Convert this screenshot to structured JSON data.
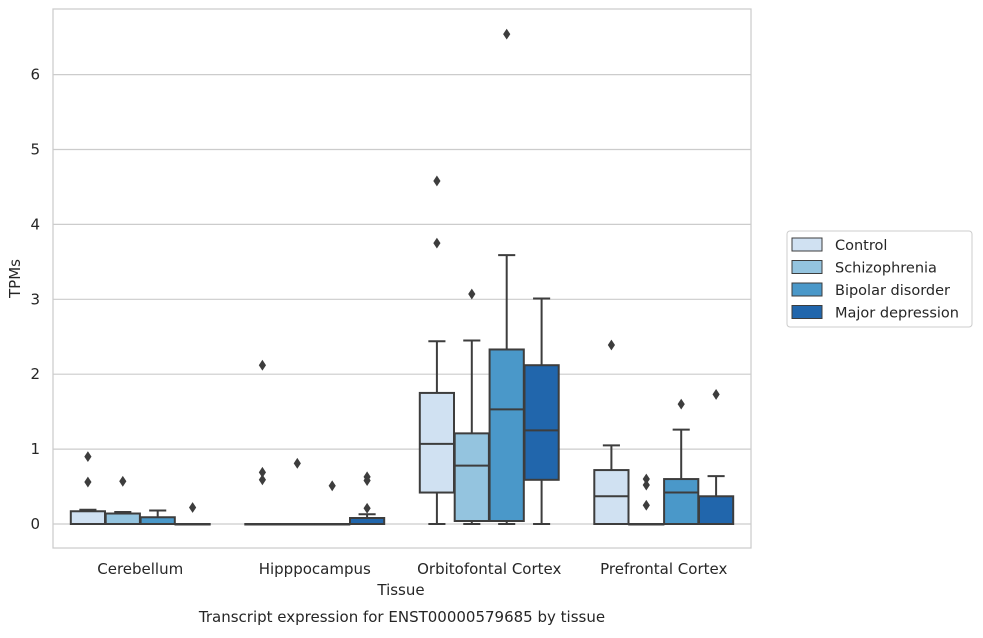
{
  "chart_data": {
    "type": "box",
    "title": "",
    "caption": "Transcript expression for ENST00000579685 by tissue",
    "xlabel": "Tissue",
    "ylabel": "TPMs",
    "ylim": [
      -0.32,
      6.9
    ],
    "yticks": [
      0,
      1,
      2,
      3,
      4,
      5,
      6
    ],
    "grid": "horizontal",
    "legend_position": "right",
    "categories": [
      "Cerebellum",
      "Hipppocampus",
      "Orbitofontal Cortex",
      "Prefrontal Cortex"
    ],
    "series": [
      {
        "name": "Control",
        "color": "#d0e1f2",
        "boxes": [
          {
            "q1": 0.0,
            "median": 0.0,
            "q3": 0.17,
            "whislo": 0.0,
            "whishi": 0.19,
            "fliers": [
              0.9,
              0.56
            ]
          },
          {
            "q1": 0.0,
            "median": 0.0,
            "q3": 0.0,
            "whislo": 0.0,
            "whishi": 0.0,
            "fliers": [
              2.12,
              0.69,
              0.59
            ]
          },
          {
            "q1": 0.42,
            "median": 1.07,
            "q3": 1.75,
            "whislo": 0.0,
            "whishi": 2.44,
            "fliers": [
              4.58,
              3.75
            ]
          },
          {
            "q1": 0.0,
            "median": 0.37,
            "q3": 0.72,
            "whislo": 0.0,
            "whishi": 1.05,
            "fliers": [
              2.39
            ]
          }
        ]
      },
      {
        "name": "Schizophrenia",
        "color": "#94c4df",
        "boxes": [
          {
            "q1": 0.0,
            "median": 0.0,
            "q3": 0.14,
            "whislo": 0.0,
            "whishi": 0.16,
            "fliers": [
              0.57
            ]
          },
          {
            "q1": 0.0,
            "median": 0.0,
            "q3": 0.0,
            "whislo": 0.0,
            "whishi": 0.0,
            "fliers": [
              0.81
            ]
          },
          {
            "q1": 0.04,
            "median": 0.78,
            "q3": 1.21,
            "whislo": 0.0,
            "whishi": 2.45,
            "fliers": [
              3.07
            ]
          },
          {
            "q1": 0.0,
            "median": 0.0,
            "q3": 0.0,
            "whislo": 0.0,
            "whishi": 0.0,
            "fliers": [
              0.6,
              0.52,
              0.25
            ]
          }
        ]
      },
      {
        "name": "Bipolar disorder",
        "color": "#4a98c9",
        "boxes": [
          {
            "q1": 0.0,
            "median": 0.0,
            "q3": 0.09,
            "whislo": 0.0,
            "whishi": 0.18,
            "fliers": []
          },
          {
            "q1": 0.0,
            "median": 0.0,
            "q3": 0.0,
            "whislo": 0.0,
            "whishi": 0.0,
            "fliers": [
              0.51
            ]
          },
          {
            "q1": 0.04,
            "median": 1.53,
            "q3": 2.33,
            "whislo": 0.0,
            "whishi": 3.59,
            "fliers": [
              6.54
            ]
          },
          {
            "q1": 0.0,
            "median": 0.42,
            "q3": 0.6,
            "whislo": 0.0,
            "whishi": 1.26,
            "fliers": [
              1.6
            ]
          }
        ]
      },
      {
        "name": "Major depression",
        "color": "#2166ac",
        "boxes": [
          {
            "q1": 0.0,
            "median": 0.0,
            "q3": 0.0,
            "whislo": 0.0,
            "whishi": 0.0,
            "fliers": [
              0.22
            ]
          },
          {
            "q1": 0.0,
            "median": 0.0,
            "q3": 0.08,
            "whislo": 0.0,
            "whishi": 0.13,
            "fliers": [
              0.63,
              0.58,
              0.21
            ]
          },
          {
            "q1": 0.59,
            "median": 1.25,
            "q3": 2.12,
            "whislo": 0.0,
            "whishi": 3.01,
            "fliers": []
          },
          {
            "q1": 0.0,
            "median": 0.0,
            "q3": 0.37,
            "whislo": 0.0,
            "whishi": 0.64,
            "fliers": [
              1.73
            ]
          }
        ]
      }
    ]
  }
}
